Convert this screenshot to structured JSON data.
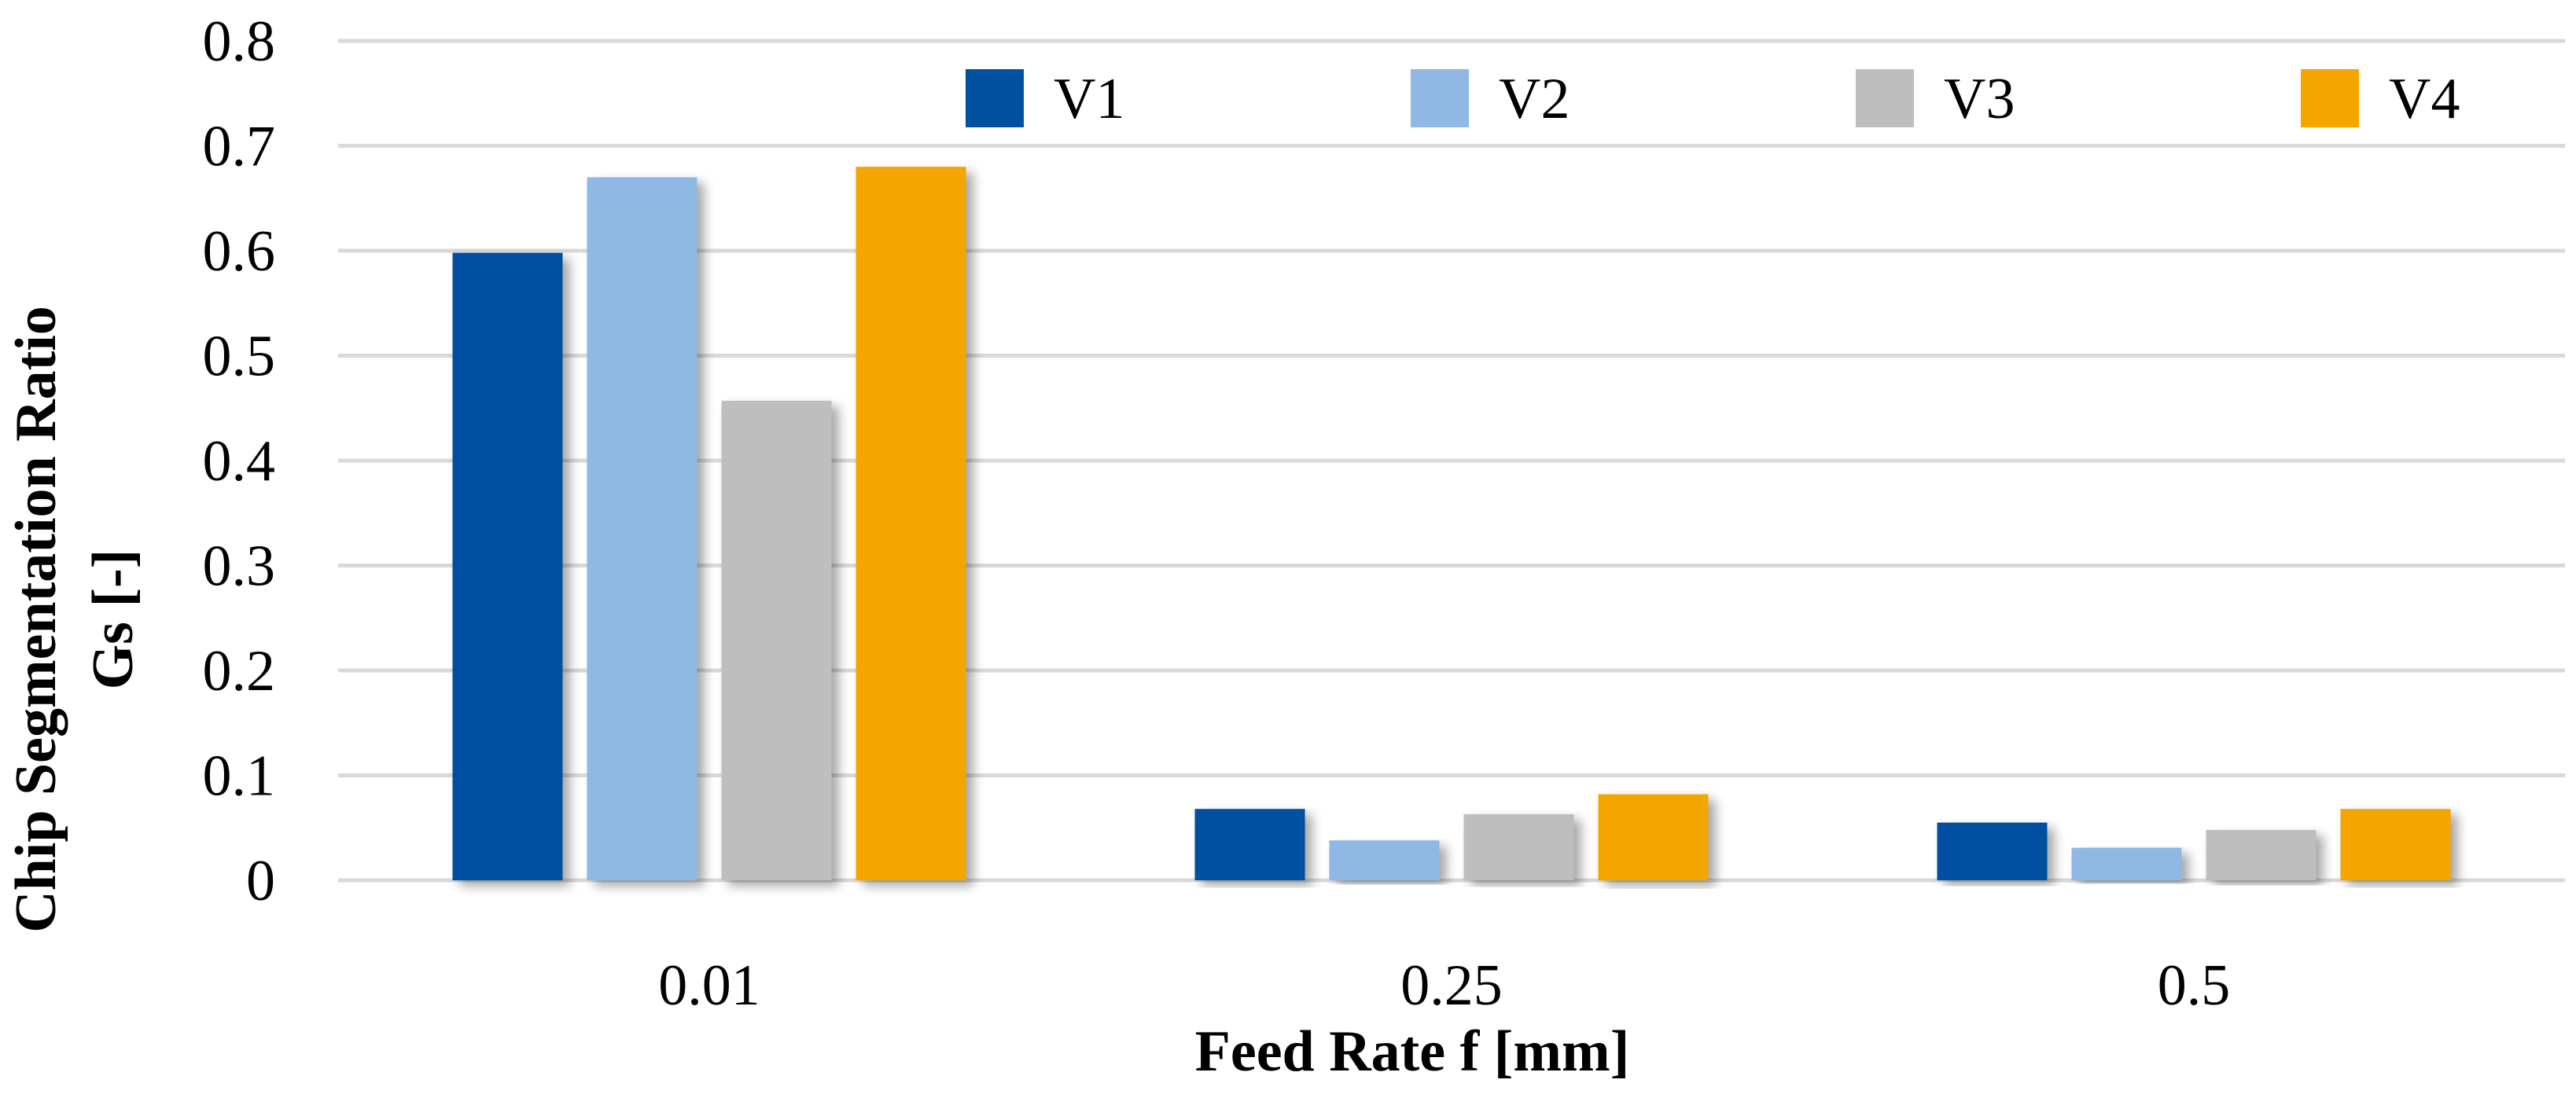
{
  "chart_data": {
    "type": "bar",
    "title": "",
    "xlabel": "Feed Rate f [mm]",
    "ylabel_lines": [
      "Chip Segmentation Ratio",
      "Gs [-]"
    ],
    "categories": [
      "0.01",
      "0.25",
      "0.5"
    ],
    "series": [
      {
        "name": "V1",
        "color": "#0050A0",
        "values": [
          0.598,
          0.068,
          0.055
        ]
      },
      {
        "name": "V2",
        "color": "#8FB8E4",
        "values": [
          0.67,
          0.038,
          0.031
        ]
      },
      {
        "name": "V3",
        "color": "#BEBEBE",
        "values": [
          0.457,
          0.063,
          0.048
        ]
      },
      {
        "name": "V4",
        "color": "#F5A500",
        "values": [
          0.68,
          0.082,
          0.068
        ]
      }
    ],
    "ylim": [
      0,
      0.8
    ],
    "yticks": [
      0,
      0.1,
      0.2,
      0.3,
      0.4,
      0.5,
      0.6,
      0.7,
      0.8
    ],
    "ytick_labels": [
      "0",
      "0.1",
      "0.2",
      "0.3",
      "0.4",
      "0.5",
      "0.6",
      "0.7",
      "0.8"
    ],
    "grid": true,
    "gridline_color": "#D9D9D9",
    "legend_position": "top-right"
  }
}
